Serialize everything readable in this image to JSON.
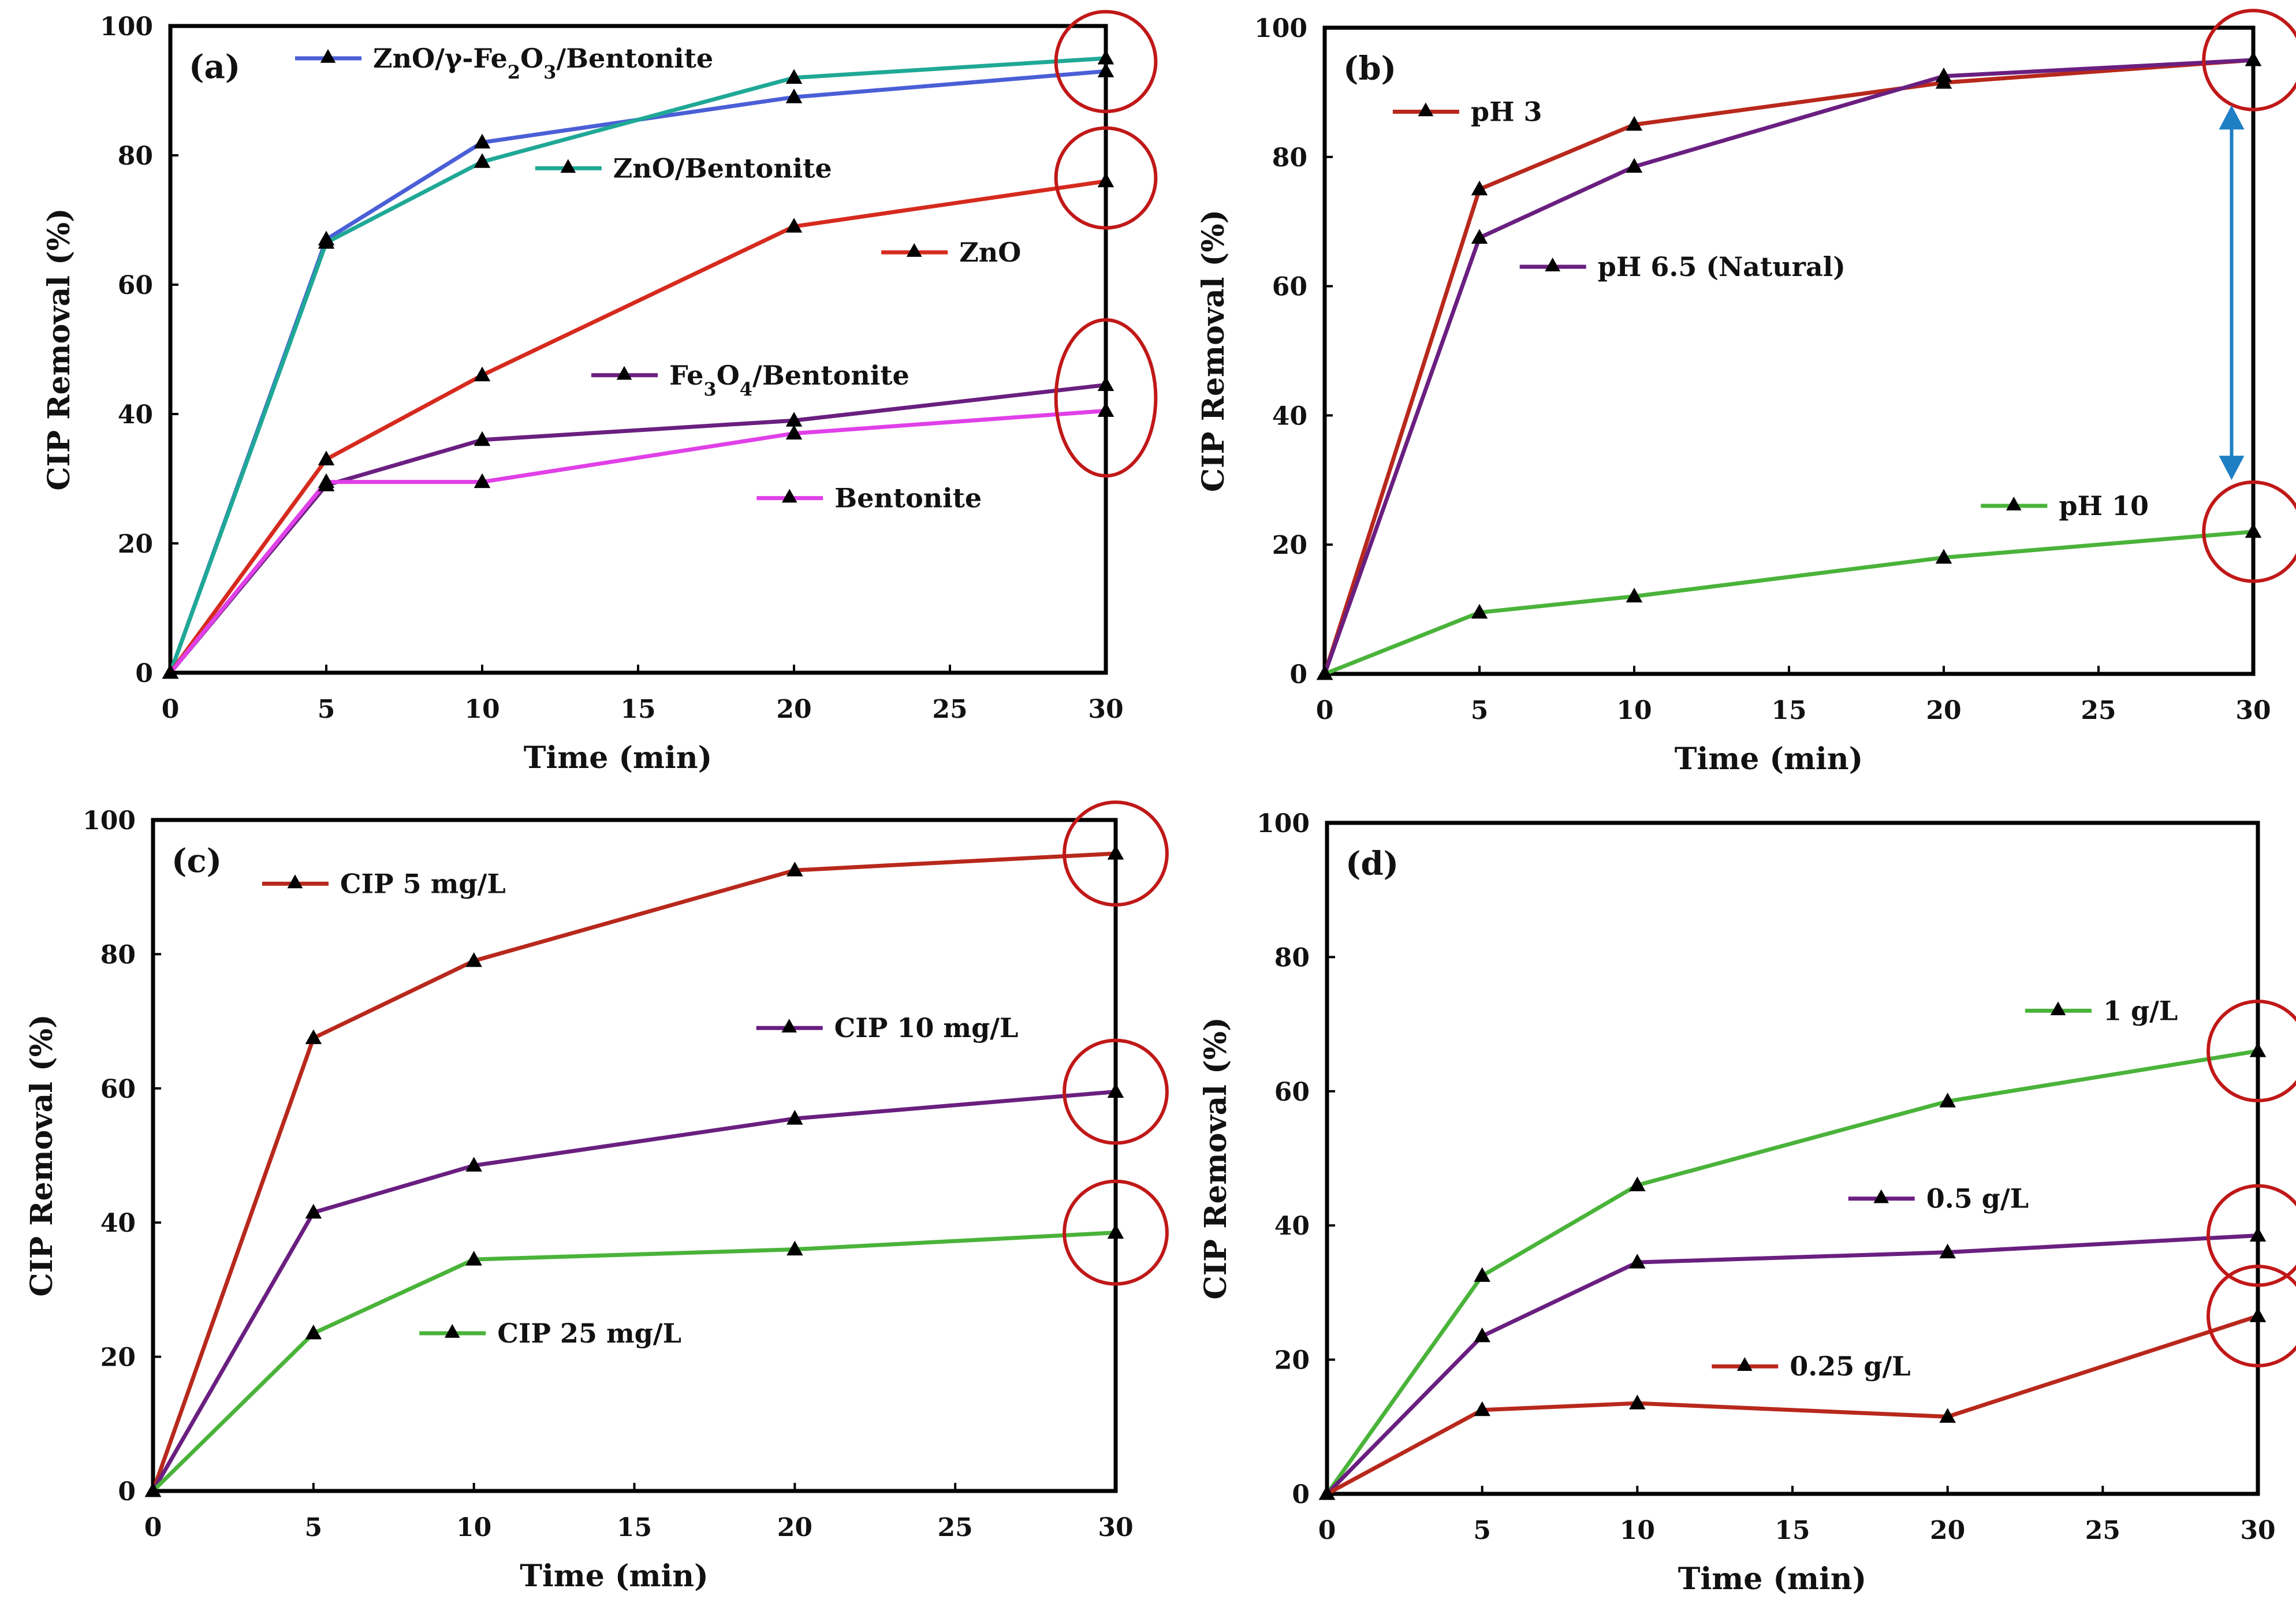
{
  "figure_title": "",
  "colors": {
    "blue": "#4a5fd6",
    "teal": "#1fa896",
    "red": "#d62a1e",
    "purple": "#6a1f80",
    "magenta": "#e040e8",
    "darkred": "#b8281c",
    "green": "#4ab33a",
    "circle": "#c01818",
    "arrow": "#1f7fc4"
  },
  "chart_data": [
    {
      "type": "line",
      "panel_label": "(a)",
      "xlabel": "Time (min)",
      "ylabel": "CIP Removal (%)",
      "xlim": [
        0,
        30
      ],
      "ylim": [
        0,
        100
      ],
      "x_ticks": [
        "0",
        "5",
        "10",
        "15",
        "20",
        "25",
        "30"
      ],
      "y_ticks": [
        "0",
        "20",
        "40",
        "60",
        "80",
        "100"
      ],
      "x": [
        0,
        5,
        10,
        20,
        30
      ],
      "series": [
        {
          "name": "ZnO/γ-Fe₂O₃/Bentonite",
          "name_parts": [
            "ZnO/γ-Fe",
            "2",
            "O",
            "3",
            "/Bentonite"
          ],
          "color_key": "blue",
          "values": [
            0,
            67,
            82,
            89,
            93
          ]
        },
        {
          "name": "ZnO/Bentonite",
          "color_key": "teal",
          "values": [
            0,
            66.5,
            79,
            92,
            95
          ]
        },
        {
          "name": "ZnO",
          "color_key": "red",
          "values": [
            0,
            33,
            46,
            69,
            76
          ]
        },
        {
          "name": "Fe₃O₄/Bentonite",
          "name_parts": [
            "Fe",
            "3",
            "O",
            "4",
            "/Bentonite"
          ],
          "color_key": "purple",
          "values": [
            0,
            29,
            36,
            39,
            44.5
          ]
        },
        {
          "name": "Bentonite",
          "color_key": "magenta",
          "values": [
            0,
            29.5,
            29.5,
            37,
            40.5
          ]
        }
      ],
      "legend_anchor_data": [
        {
          "x": 4.0,
          "y": 95
        },
        {
          "x": 11.7,
          "y": 78
        },
        {
          "x": 22.8,
          "y": 65
        },
        {
          "x": 13.5,
          "y": 46
        },
        {
          "x": 18.8,
          "y": 27
        }
      ],
      "highlight_circles": [
        {
          "x": 30,
          "y": 94.5,
          "r": 3.2
        },
        {
          "x": 30,
          "y": 76.5,
          "r": 3.2
        },
        {
          "x": 30,
          "y": 42.5,
          "r": 5
        }
      ]
    },
    {
      "type": "line",
      "panel_label": "(b)",
      "xlabel": "Time (min)",
      "ylabel": "CIP Removal (%)",
      "xlim": [
        0,
        30
      ],
      "ylim": [
        0,
        100
      ],
      "x_ticks": [
        "0",
        "5",
        "10",
        "15",
        "20",
        "25",
        "30"
      ],
      "y_ticks": [
        "0",
        "20",
        "40",
        "60",
        "80",
        "100"
      ],
      "x": [
        0,
        5,
        10,
        20,
        30
      ],
      "series": [
        {
          "name": "pH 3",
          "color_key": "darkred",
          "values": [
            0,
            75,
            85,
            91.5,
            95
          ]
        },
        {
          "name": "pH 6.5 (Natural)",
          "color_key": "purple",
          "values": [
            0,
            67.5,
            78.5,
            92.5,
            95
          ]
        },
        {
          "name": "pH 10",
          "color_key": "green",
          "values": [
            0,
            9.5,
            12,
            18,
            22
          ]
        }
      ],
      "legend_anchor_data": [
        {
          "x": 2.2,
          "y": 87
        },
        {
          "x": 6.3,
          "y": 63
        },
        {
          "x": 21.2,
          "y": 26
        }
      ],
      "highlight_circles": [
        {
          "x": 30,
          "y": 95,
          "r": 3.2
        },
        {
          "x": 30,
          "y": 22,
          "r": 3.2
        }
      ],
      "double_arrow": {
        "x": 29.3,
        "y_from": 88,
        "y_to": 30
      }
    },
    {
      "type": "line",
      "panel_label": "(c)",
      "xlabel": "Time (min)",
      "ylabel": "CIP Removal (%)",
      "xlim": [
        0,
        30
      ],
      "ylim": [
        0,
        100
      ],
      "x_ticks": [
        "0",
        "5",
        "10",
        "15",
        "20",
        "25",
        "30"
      ],
      "y_ticks": [
        "0",
        "20",
        "40",
        "60",
        "80",
        "100"
      ],
      "x": [
        0,
        5,
        10,
        20,
        30
      ],
      "series": [
        {
          "name": "CIP 5 mg/L",
          "color_key": "darkred",
          "values": [
            0,
            67.5,
            79,
            92.5,
            95
          ]
        },
        {
          "name": "CIP 10 mg/L",
          "color_key": "purple",
          "values": [
            0,
            41.5,
            48.5,
            55.5,
            59.5
          ]
        },
        {
          "name": "CIP 25 mg/L",
          "color_key": "green",
          "values": [
            0,
            23.5,
            34.5,
            36,
            38.5
          ]
        }
      ],
      "legend_anchor_data": [
        {
          "x": 3.4,
          "y": 90.5
        },
        {
          "x": 18.8,
          "y": 69
        },
        {
          "x": 8.3,
          "y": 23.5
        }
      ],
      "highlight_circles": [
        {
          "x": 30,
          "y": 95,
          "r": 3.2
        },
        {
          "x": 30,
          "y": 59.5,
          "r": 3.2
        },
        {
          "x": 30,
          "y": 38.5,
          "r": 3.2
        }
      ]
    },
    {
      "type": "line",
      "panel_label": "(d)",
      "xlabel": "Time (min)",
      "ylabel": "CIP Removal (%)",
      "xlim": [
        0,
        30
      ],
      "ylim": [
        0,
        100
      ],
      "x_ticks": [
        "0",
        "5",
        "10",
        "15",
        "20",
        "25",
        "30"
      ],
      "y_ticks": [
        "0",
        "20",
        "40",
        "60",
        "80",
        "100"
      ],
      "x": [
        0,
        5,
        10,
        20,
        30
      ],
      "series": [
        {
          "name": "1 g/L",
          "color_key": "green",
          "values": [
            0,
            32.5,
            46,
            58.5,
            66
          ]
        },
        {
          "name": "0.5 g/L",
          "color_key": "purple",
          "values": [
            0,
            23.5,
            34.5,
            36,
            38.5
          ]
        },
        {
          "name": "0.25 g/L",
          "color_key": "darkred",
          "values": [
            0,
            12.5,
            13.5,
            11.5,
            26.5
          ]
        }
      ],
      "legend_anchor_data": [
        {
          "x": 22.5,
          "y": 72
        },
        {
          "x": 16.8,
          "y": 44
        },
        {
          "x": 12.4,
          "y": 19
        }
      ],
      "highlight_circles": [
        {
          "x": 30,
          "y": 66,
          "r": 3.2
        },
        {
          "x": 30,
          "y": 38.5,
          "r": 3.2
        },
        {
          "x": 30,
          "y": 26.5,
          "r": 3.2
        }
      ]
    }
  ]
}
